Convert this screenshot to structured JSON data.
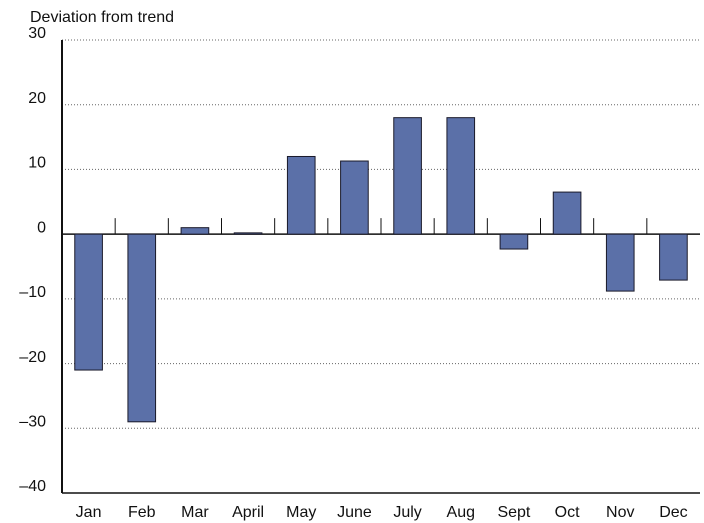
{
  "chart_data": {
    "type": "bar",
    "y_label": "Deviation from trend",
    "categories": [
      "Jan",
      "Feb",
      "Mar",
      "April",
      "May",
      "June",
      "July",
      "Aug",
      "Sept",
      "Oct",
      "Nov",
      "Dec"
    ],
    "values": [
      -21,
      -29,
      1,
      0.2,
      12,
      11.3,
      18,
      18,
      -2.3,
      6.5,
      -8.8,
      -7.1
    ],
    "color": "#5b70a8",
    "ylim": [
      -40,
      30
    ],
    "yticks": [
      {
        "value": -40,
        "label": "–40"
      },
      {
        "value": -30,
        "label": "–30"
      },
      {
        "value": -20,
        "label": "–20"
      },
      {
        "value": -10,
        "label": "–10"
      },
      0,
      10,
      20,
      30
    ],
    "grid": true
  }
}
